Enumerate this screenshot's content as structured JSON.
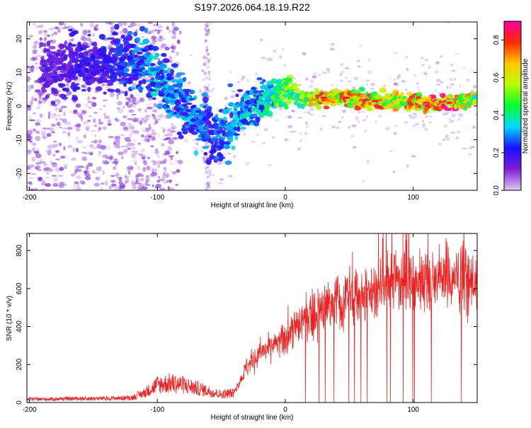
{
  "title": "S197.2026.064.18.19.R22",
  "chart_data": [
    {
      "type": "heatmap",
      "title": "S197.2026.064.18.19.R22",
      "xlabel": "Height of straight line (km)",
      "ylabel": "Frequency (Hz)",
      "xlim": [
        -202,
        150
      ],
      "ylim": [
        -25,
        25
      ],
      "xticks": [
        -200,
        -100,
        0,
        100
      ],
      "xtick_labels": [
        "-200",
        "-100",
        "0",
        "100"
      ],
      "yticks": [
        20,
        10,
        0,
        -10,
        -20
      ],
      "ytick_labels": [
        "20",
        "10",
        "0",
        "-10",
        "-20"
      ],
      "ridge": {
        "x": [
          -180,
          -160,
          -140,
          -125,
          -110,
          -100,
          -90,
          -80,
          -70,
          -60,
          -55,
          -50,
          -45,
          -40,
          -30,
          -20,
          -10,
          0,
          5,
          10,
          30,
          50,
          70,
          90,
          110,
          130,
          150
        ],
        "freq": [
          11,
          12,
          13,
          13,
          12,
          9,
          5,
          1,
          -3,
          -6,
          -9,
          -10,
          -7,
          -4,
          -1,
          1,
          3,
          5,
          5,
          2,
          2.5,
          2.5,
          1.5,
          1.5,
          1,
          1,
          2
        ],
        "amplitude": [
          0.15,
          0.2,
          0.2,
          0.25,
          0.3,
          0.35,
          0.3,
          0.28,
          0.3,
          0.25,
          0.25,
          0.28,
          0.3,
          0.3,
          0.32,
          0.35,
          0.4,
          0.55,
          0.5,
          0.55,
          0.7,
          0.7,
          0.7,
          0.65,
          0.75,
          0.8,
          0.55
        ]
      },
      "colorbar": {
        "label": "Normalized spectral amplitude",
        "ticks": [
          0.0,
          0.2,
          0.4,
          0.6,
          0.8
        ],
        "tick_labels": [
          "0.0",
          "0.2",
          "0.4",
          "0.6",
          "0.8"
        ],
        "range": [
          0,
          0.9
        ],
        "stops": [
          "#e0c8f0",
          "#7b1fd6",
          "#1a10ff",
          "#00d8ff",
          "#00ff30",
          "#b8ff00",
          "#ffc800",
          "#ff2800",
          "#ff00a0"
        ]
      }
    },
    {
      "type": "line",
      "xlabel": "Height of straight line (km)",
      "ylabel": "SNR (10 * v/v)",
      "xlim": [
        -202,
        150
      ],
      "ylim": [
        0,
        890
      ],
      "xticks": [
        -200,
        -100,
        0,
        100
      ],
      "xtick_labels": [
        "-200",
        "-100",
        "0",
        "100"
      ],
      "yticks": [
        0,
        200,
        400,
        600,
        800
      ],
      "ytick_labels": [
        "0",
        "200",
        "400",
        "600",
        "800"
      ],
      "color": "#ee2222",
      "envelope": {
        "x": [
          -202,
          -180,
          -160,
          -140,
          -120,
          -110,
          -100,
          -90,
          -80,
          -70,
          -60,
          -50,
          -40,
          -35,
          -30,
          -20,
          -10,
          0,
          10,
          20,
          40,
          60,
          80,
          100,
          120,
          140,
          150
        ],
        "snr": [
          20,
          22,
          25,
          25,
          30,
          60,
          110,
          120,
          110,
          90,
          70,
          50,
          60,
          130,
          200,
          280,
          320,
          360,
          430,
          500,
          570,
          620,
          680,
          700,
          720,
          710,
          720
        ]
      }
    }
  ]
}
